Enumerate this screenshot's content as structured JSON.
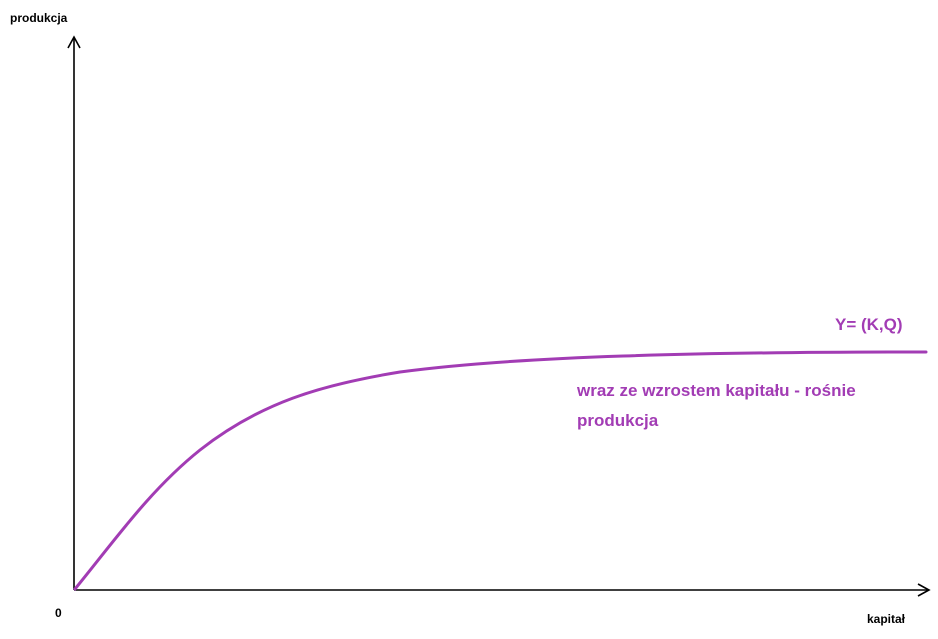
{
  "diagram": {
    "y_axis_label": "produkcja",
    "x_axis_label": "kapitał",
    "origin_label": "0",
    "curve_label": "Y= (K,Q)",
    "annotation_line1": "wraz ze wzrostem kapitału - rośnie",
    "annotation_line2": "produkcja",
    "curve_color": "#a23cb4",
    "axis_color": "#000000",
    "curve_shape": "concave increasing, saturating"
  }
}
